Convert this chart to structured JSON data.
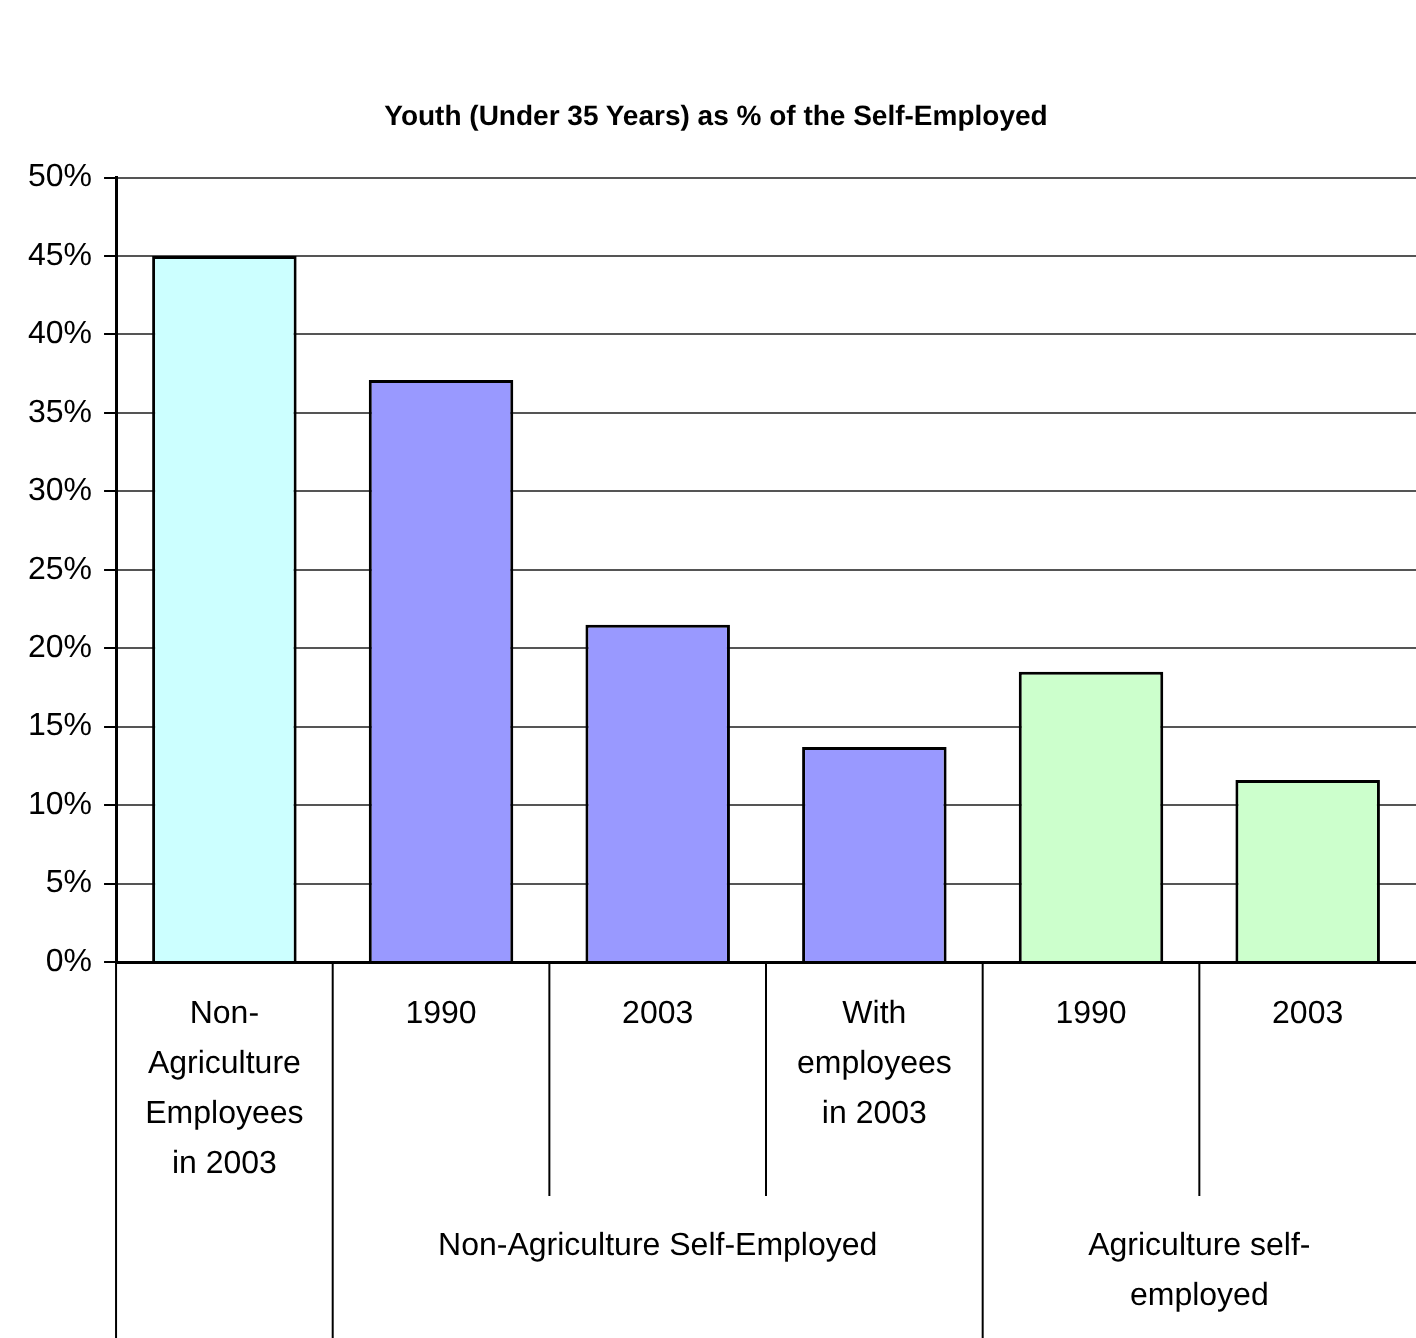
{
  "chart_data": {
    "type": "bar",
    "title": "Youth (Under 35 Years) as % of the Self-Employed",
    "categories": [
      "Non-Agriculture Employees in 2003",
      "1990",
      "2003",
      "With employees in 2003",
      "1990",
      "2003"
    ],
    "values": [
      45,
      37.1,
      21.5,
      13.7,
      18.5,
      11.6
    ],
    "colors": [
      "#ccffff",
      "#9999ff",
      "#9999ff",
      "#9999ff",
      "#ccffcc",
      "#ccffcc"
    ],
    "ylim": [
      0,
      50
    ],
    "yticks": [
      {
        "value": 0,
        "label": "0%"
      },
      {
        "value": 5,
        "label": "5%"
      },
      {
        "value": 10,
        "label": "10%"
      },
      {
        "value": 15,
        "label": "15%"
      },
      {
        "value": 20,
        "label": "20%"
      },
      {
        "value": 25,
        "label": "25%"
      },
      {
        "value": 30,
        "label": "30%"
      },
      {
        "value": 35,
        "label": "35%"
      },
      {
        "value": 40,
        "label": "40%"
      },
      {
        "value": 45,
        "label": "45%"
      },
      {
        "value": 50,
        "label": "50%"
      }
    ],
    "grid": "y",
    "legend": false,
    "annotations": [
      "Non-Agriculture Self-Employed",
      "Agriculture self-employed"
    ]
  }
}
